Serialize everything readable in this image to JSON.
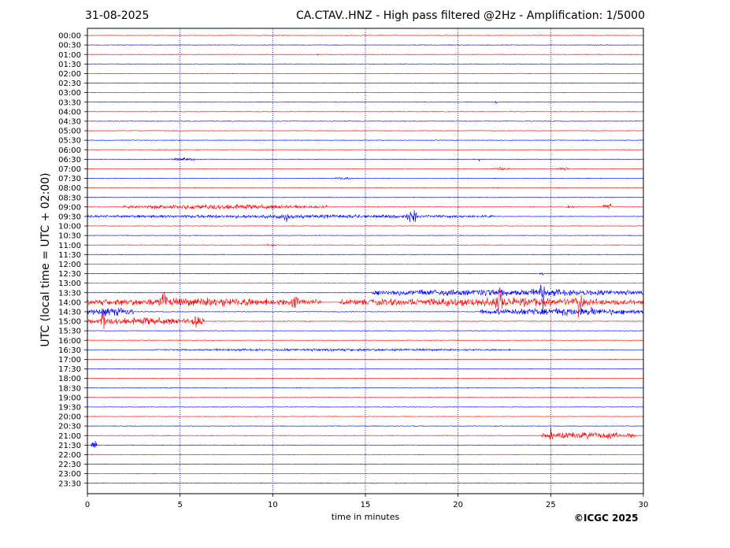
{
  "header": {
    "date": "31-08-2025",
    "title": "CA.CTAV..HNZ - High pass filtered @2Hz - Amplification: 1/5000"
  },
  "footer": {
    "copyright": "©ICGC 2025"
  },
  "chart_data": {
    "type": "line",
    "title": "CA.CTAV..HNZ - High pass filtered @2Hz - Amplification: 1/5000",
    "xlabel": "time in minutes",
    "ylabel": "UTC (local time = UTC + 02:00)",
    "xlim": [
      0,
      30
    ],
    "x_ticks": [
      0,
      5,
      10,
      15,
      20,
      25,
      30
    ],
    "y_ticks": [
      "00:00",
      "00:30",
      "01:00",
      "01:30",
      "02:00",
      "02:30",
      "03:00",
      "03:30",
      "04:00",
      "04:30",
      "05:00",
      "05:30",
      "06:00",
      "06:30",
      "07:00",
      "07:30",
      "08:00",
      "08:30",
      "09:00",
      "09:30",
      "10:00",
      "10:30",
      "11:00",
      "11:30",
      "12:00",
      "12:30",
      "13:00",
      "13:30",
      "14:00",
      "14:30",
      "15:00",
      "15:30",
      "16:00",
      "16:30",
      "17:00",
      "17:30",
      "18:00",
      "18:30",
      "19:00",
      "19:30",
      "20:00",
      "20:30",
      "21:00",
      "21:30",
      "22:00",
      "22:30",
      "23:00",
      "23:30"
    ],
    "y_axis_inverted": true,
    "vertical_gridlines": [
      5,
      10,
      15,
      20,
      25
    ],
    "grid_style": "dotted",
    "trace_colors": [
      "#ff0000",
      "#0000ff"
    ],
    "colors": {
      "even_rows": "#ff0000",
      "odd_rows": "#0000ff"
    },
    "events": [
      {
        "row": "01:00",
        "start": 12.4,
        "end": 12.5,
        "amp": 2
      },
      {
        "row": "03:30",
        "start": 22.0,
        "end": 22.1,
        "amp": 3
      },
      {
        "row": "06:30",
        "start": 4.4,
        "end": 5.8,
        "amp": 2.5
      },
      {
        "row": "06:30",
        "start": 21.1,
        "end": 21.2,
        "amp": 4
      },
      {
        "row": "07:00",
        "start": 21.8,
        "end": 22.8,
        "amp": 2.5
      },
      {
        "row": "07:00",
        "start": 25.3,
        "end": 26.0,
        "amp": 2.5
      },
      {
        "row": "07:30",
        "start": 13.4,
        "end": 14.2,
        "amp": 2.5
      },
      {
        "row": "09:00",
        "start": 1.9,
        "end": 13.0,
        "amp": 4
      },
      {
        "row": "09:00",
        "start": 25.8,
        "end": 26.3,
        "amp": 3
      },
      {
        "row": "09:00",
        "start": 27.8,
        "end": 28.3,
        "amp": 8
      },
      {
        "row": "09:30",
        "start": 0.0,
        "end": 22.0,
        "amp": 3
      },
      {
        "row": "09:30",
        "start": 10.6,
        "end": 10.9,
        "amp": 9
      },
      {
        "row": "09:30",
        "start": 17.2,
        "end": 17.8,
        "amp": 12
      },
      {
        "row": "11:00",
        "start": 9.5,
        "end": 10.3,
        "amp": 2
      },
      {
        "row": "12:30",
        "start": 24.4,
        "end": 24.7,
        "amp": 2
      },
      {
        "row": "13:30",
        "start": 15.3,
        "end": 30.0,
        "amp": 6
      },
      {
        "row": "13:30",
        "start": 24.4,
        "end": 24.7,
        "amp": 30
      },
      {
        "row": "14:00",
        "start": 0.0,
        "end": 12.6,
        "amp": 7
      },
      {
        "row": "14:00",
        "start": 4.0,
        "end": 4.3,
        "amp": 22
      },
      {
        "row": "14:00",
        "start": 11.0,
        "end": 11.4,
        "amp": 16
      },
      {
        "row": "14:00",
        "start": 13.6,
        "end": 30.0,
        "amp": 7
      },
      {
        "row": "14:00",
        "start": 22.0,
        "end": 22.4,
        "amp": 30
      },
      {
        "row": "14:00",
        "start": 26.3,
        "end": 26.8,
        "amp": 25
      },
      {
        "row": "14:30",
        "start": 0.0,
        "end": 2.5,
        "amp": 7
      },
      {
        "row": "14:30",
        "start": 21.2,
        "end": 30.0,
        "amp": 6
      },
      {
        "row": "14:30",
        "start": 27.1,
        "end": 27.4,
        "amp": 14
      },
      {
        "row": "15:00",
        "start": 0.0,
        "end": 6.3,
        "amp": 6
      },
      {
        "row": "15:00",
        "start": 0.7,
        "end": 1.0,
        "amp": 20
      },
      {
        "row": "15:00",
        "start": 5.6,
        "end": 6.3,
        "amp": 10
      },
      {
        "row": "16:30",
        "start": 3.5,
        "end": 23.0,
        "amp": 2
      },
      {
        "row": "16:30",
        "start": 16.5,
        "end": 16.7,
        "amp": 5
      },
      {
        "row": "21:00",
        "start": 24.5,
        "end": 29.6,
        "amp": 6
      },
      {
        "row": "21:00",
        "start": 24.9,
        "end": 25.1,
        "amp": 14
      },
      {
        "row": "21:30",
        "start": 0.2,
        "end": 0.5,
        "amp": 10
      }
    ]
  }
}
